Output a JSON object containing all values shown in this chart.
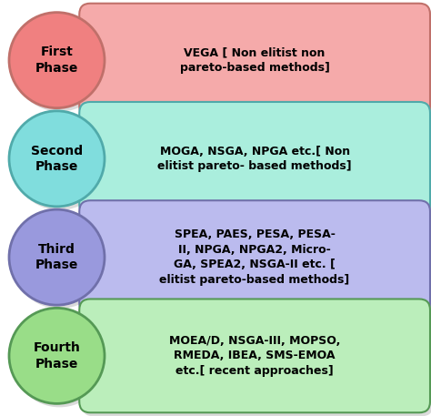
{
  "phases": [
    {
      "circle_label": "First\nPhase",
      "circle_color": "#F08080",
      "circle_edge": "#C0706A",
      "box_color": "#F5AAAA",
      "box_edge": "#C0706A",
      "box_text": "VEGA [ Non elitist non\npareto-based methods]"
    },
    {
      "circle_label": "Second\nPhase",
      "circle_color": "#80DDDD",
      "circle_edge": "#50AAAA",
      "box_color": "#AAEEDD",
      "box_edge": "#50AAAA",
      "box_text": "MOGA, NSGA, NPGA etc.[ Non\nelitist pareto- based methods]"
    },
    {
      "circle_label": "Third\nPhase",
      "circle_color": "#9999DD",
      "circle_edge": "#7070AA",
      "box_color": "#BBBBEE",
      "box_edge": "#7070AA",
      "box_text": "SPEA, PAES, PESA, PESA-\nII, NPGA, NPGA2, Micro-\nGA, SPEA2, NSGA-II etc. [\nelitist pareto-based methods]"
    },
    {
      "circle_label": "Fourth\nPhase",
      "circle_color": "#99DD88",
      "circle_edge": "#559955",
      "box_color": "#BBEEBB",
      "box_edge": "#559955",
      "box_text": "MOEA/D, NSGA-III, MOPSO,\nRMEDA, IBEA, SMS-EMOA\netc.[ recent approaches]"
    }
  ],
  "background_color": "#FFFFFF",
  "text_color": "#000000",
  "fig_width": 4.74,
  "fig_height": 4.57,
  "dpi": 100,
  "font_size_circle": 10,
  "font_size_box": 9
}
